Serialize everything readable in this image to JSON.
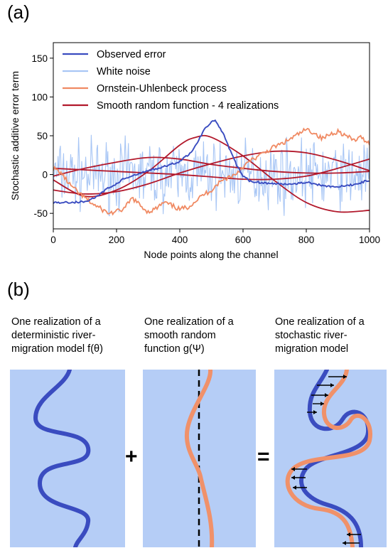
{
  "panel_a": {
    "tag": "(a)",
    "chart_data": {
      "type": "line",
      "title": "",
      "xlabel": "Node points along the channel",
      "ylabel": "Stochastic additive error term",
      "xlim": [
        0,
        1000
      ],
      "ylim": [
        -70,
        170
      ],
      "xticks": [
        0,
        200,
        400,
        600,
        800,
        1000
      ],
      "yticks": [
        -50,
        0,
        50,
        100,
        150
      ],
      "grid": false,
      "legend_placement": "top-left",
      "series": [
        {
          "name": "Observed error",
          "color": "#3a4cc0",
          "x": [
            0,
            50,
            100,
            130,
            150,
            170,
            190,
            200,
            220,
            250,
            300,
            350,
            400,
            440,
            460,
            480,
            500,
            510,
            520,
            540,
            560,
            580,
            600,
            620,
            650,
            700,
            750,
            800,
            850,
            900,
            950,
            1000
          ],
          "y": [
            -36,
            -36,
            -35,
            -30,
            -25,
            -18,
            -14,
            -12,
            -6,
            -2,
            5,
            10,
            17,
            30,
            45,
            60,
            68,
            70,
            65,
            50,
            30,
            12,
            -2,
            -8,
            -10,
            -12,
            -12,
            -10,
            -14,
            -16,
            -13,
            -7
          ]
        },
        {
          "name": "White noise",
          "color": "#a8c6f5",
          "note_y_range": [
            -65,
            65
          ]
        },
        {
          "name": "Ornstein-Uhlenbeck process",
          "color": "#f08a63",
          "x": [
            0,
            25,
            50,
            75,
            100,
            125,
            150,
            175,
            200,
            225,
            250,
            275,
            300,
            325,
            350,
            375,
            400,
            425,
            450,
            475,
            500,
            525,
            550,
            575,
            600,
            625,
            650,
            675,
            700,
            725,
            750,
            775,
            800,
            825,
            850,
            875,
            900,
            925,
            950,
            975,
            1000
          ],
          "y": [
            8,
            2,
            -12,
            -22,
            -30,
            -38,
            -44,
            -50,
            -48,
            -44,
            -30,
            -40,
            -48,
            -44,
            -36,
            -40,
            -45,
            -42,
            -34,
            -26,
            -20,
            -10,
            -4,
            0,
            10,
            18,
            24,
            30,
            36,
            40,
            46,
            52,
            58,
            54,
            46,
            52,
            56,
            50,
            44,
            48,
            40
          ]
        },
        {
          "name": "Smooth random function - 4 realizations",
          "color": "#b2182b",
          "realizations": [
            {
              "x": [
                0,
                100,
                200,
                300,
                400,
                450,
                500,
                600,
                700,
                800,
                900,
                1000
              ],
              "y": [
                -7,
                -28,
                -20,
                4,
                38,
                48,
                48,
                24,
                -8,
                -36,
                -48,
                -46
              ]
            },
            {
              "x": [
                0,
                100,
                200,
                300,
                400,
                500,
                600,
                700,
                800,
                900,
                1000
              ],
              "y": [
                -20,
                -25,
                -22,
                -12,
                2,
                14,
                24,
                30,
                28,
                18,
                5
              ]
            },
            {
              "x": [
                0,
                100,
                200,
                300,
                400,
                500,
                600,
                700,
                800,
                900,
                1000
              ],
              "y": [
                8,
                6,
                4,
                2,
                0,
                -3,
                -6,
                -6,
                -2,
                8,
                20
              ]
            },
            {
              "x": [
                0,
                100,
                200,
                300,
                400,
                500,
                600,
                700,
                800,
                900,
                1000
              ],
              "y": [
                -2,
                8,
                16,
                22,
                20,
                13,
                8,
                4,
                2,
                2,
                4
              ]
            }
          ]
        }
      ]
    }
  },
  "panel_b": {
    "tag": "(b)",
    "desc_1": "One realization of a\ndeterministic river-\nmigration model f(θ)",
    "desc_2": "One realization of a\nsmooth random\nfunction g(Ψ)",
    "desc_3": "One realization of a\nstochastic river-\nmigration model",
    "plus": "+",
    "equals": "=",
    "colors": {
      "box_bg": "#b5cdf6",
      "river_blue": "#3a4cc0",
      "river_orange": "#f0916a",
      "arrow": "#000000"
    }
  }
}
